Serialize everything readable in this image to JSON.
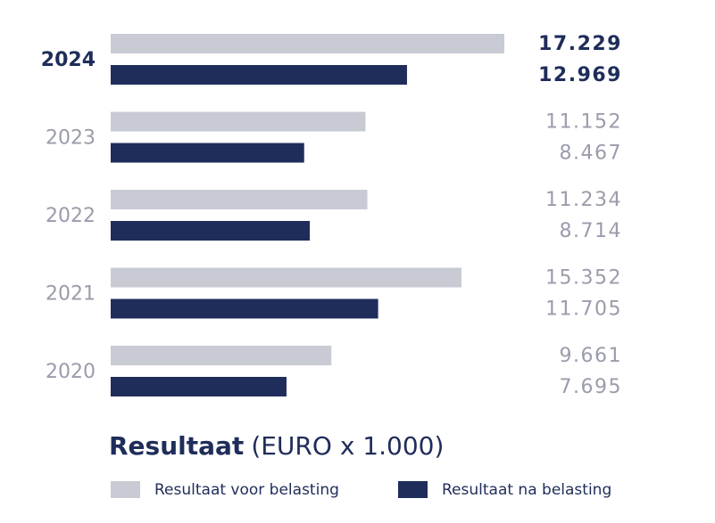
{
  "chart_data": {
    "type": "bar",
    "orientation": "horizontal",
    "title": "Resultaat",
    "subtitle": "(EURO x 1.000)",
    "categories": [
      "2024",
      "2023",
      "2022",
      "2021",
      "2020"
    ],
    "series": [
      {
        "name": "Resultaat voor belasting",
        "color": "#c8cbd4",
        "values": [
          17229,
          11152,
          11234,
          15352,
          9661
        ],
        "value_labels": [
          "17.229",
          "11.152",
          "11.234",
          "15.352",
          "9.661"
        ]
      },
      {
        "name": "Resultaat na belasting",
        "color": "#1f2d5a",
        "values": [
          12969,
          8467,
          8714,
          11705,
          7695
        ],
        "value_labels": [
          "12.969",
          "8.467",
          "8.714",
          "11.705",
          "7.695"
        ]
      }
    ],
    "legend": "bottom"
  }
}
